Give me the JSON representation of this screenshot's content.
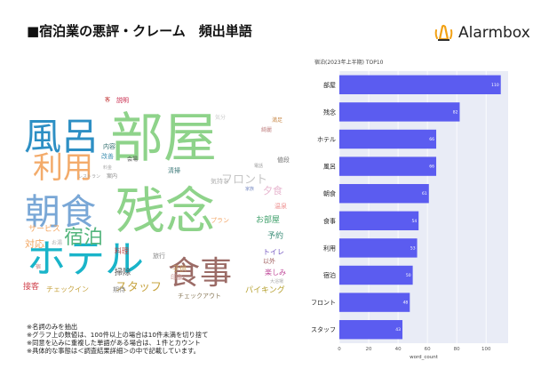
{
  "header": {
    "title": "■宿泊業の悪評・クレーム　頻出単語",
    "logo_text": "Alarmbox"
  },
  "colors": {
    "bar": "#5b5cf0",
    "plot_bg": "#e9ecf6",
    "grid": "#ffffff",
    "logo_accent": "#f2a114"
  },
  "wordcloud": {
    "words": [
      {
        "text": "部屋",
        "color": "#8ed38a"
      },
      {
        "text": "残念",
        "color": "#8ed38a"
      },
      {
        "text": "ホテル",
        "color": "#19b4c9"
      },
      {
        "text": "食事",
        "color": "#9b6b66"
      },
      {
        "text": "朝食",
        "color": "#79a7d6"
      },
      {
        "text": "風呂",
        "color": "#2d8fc4"
      },
      {
        "text": "利用",
        "color": "#f3ab6b"
      },
      {
        "text": "宿泊",
        "color": "#54b57d"
      },
      {
        "text": "フロント",
        "color": "#c5c5c5"
      },
      {
        "text": "スタッフ",
        "color": "#c7a441"
      },
      {
        "text": "夕食",
        "color": "#e7b6cf"
      },
      {
        "text": "サービス",
        "color": "#f3a660"
      },
      {
        "text": "対応",
        "color": "#f3a660"
      },
      {
        "text": "予約",
        "color": "#3e8f7a"
      },
      {
        "text": "お部屋",
        "color": "#3e9f6a"
      },
      {
        "text": "パイキング",
        "color": "#b7a233"
      },
      {
        "text": "チェックイン",
        "color": "#c7a441"
      },
      {
        "text": "接客",
        "color": "#d0424c"
      },
      {
        "text": "説明",
        "color": "#c8284b"
      },
      {
        "text": "値段",
        "color": "#777777"
      },
      {
        "text": "温泉",
        "color": "#ee8f8f"
      },
      {
        "text": "満足",
        "color": "#c88a4a"
      },
      {
        "text": "綺麗",
        "color": "#c08080"
      },
      {
        "text": "気分",
        "color": "#cccccc"
      },
      {
        "text": "内容",
        "color": "#2d6b6b"
      },
      {
        "text": "改善",
        "color": "#3d8fb0"
      },
      {
        "text": "会場",
        "color": "#555555"
      },
      {
        "text": "料金",
        "color": "#aaaaaa"
      },
      {
        "text": "清掃",
        "color": "#3e7a7a"
      },
      {
        "text": "レストラン",
        "color": "#a0a0a0"
      },
      {
        "text": "案内",
        "color": "#888888"
      },
      {
        "text": "気持ち",
        "color": "#b0b0b0"
      },
      {
        "text": "プラン",
        "color": "#f3a86b"
      },
      {
        "text": "家族",
        "color": "#7a8cc4"
      },
      {
        "text": "電話",
        "color": "#999999"
      },
      {
        "text": "料理",
        "color": "#c04040"
      },
      {
        "text": "旅行",
        "color": "#888888"
      },
      {
        "text": "掃除",
        "color": "#505050"
      },
      {
        "text": "トイレ",
        "color": "#7a5fc4"
      },
      {
        "text": "以外",
        "color": "#a06060"
      },
      {
        "text": "子供",
        "color": "#c9a060"
      },
      {
        "text": "印象",
        "color": "#cc9999"
      },
      {
        "text": "楽しみ",
        "color": "#c04a9a"
      },
      {
        "text": "期待",
        "color": "#888888"
      },
      {
        "text": "チェックアウト",
        "color": "#8a7a5a"
      },
      {
        "text": "大浴場",
        "color": "#aaaaaa"
      },
      {
        "text": "お湯",
        "color": "#b0b0b0"
      },
      {
        "text": "客",
        "color": "#c03030"
      },
      {
        "text": "宿",
        "color": "#c07a7a"
      }
    ]
  },
  "notes": [
    "※名詞のみを抽出",
    "※グラフ上の数値は、100件以上の場合は10件未満を切り捨て",
    "※同意を込みに重複した単語がある場合は、１件とカウント",
    "※具体的な事態は＜調査結果詳細＞の中で記載しています。"
  ],
  "chart_data": {
    "type": "bar",
    "orientation": "horizontal",
    "title": "宿泊(2023年上半期) TOP10",
    "categories": [
      "部屋",
      "残念",
      "ホテル",
      "風呂",
      "朝食",
      "食事",
      "利用",
      "宿泊",
      "フロント",
      "スタッフ"
    ],
    "values": [
      110,
      82,
      66,
      66,
      61,
      54,
      53,
      50,
      48,
      43
    ],
    "xlabel": "word_count",
    "ylabel": "",
    "xlim": [
      0,
      115
    ],
    "xticks": [
      0,
      20,
      40,
      60,
      80,
      100
    ],
    "grid": true
  }
}
